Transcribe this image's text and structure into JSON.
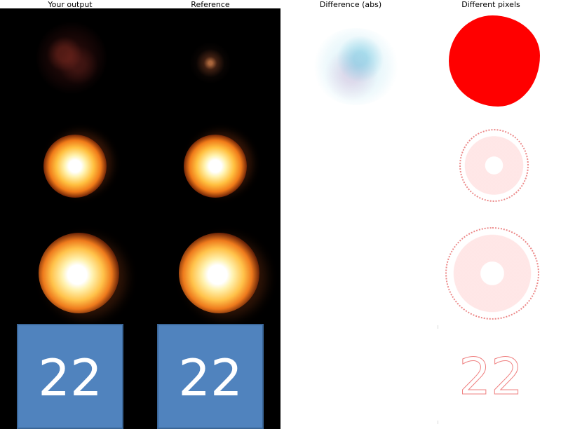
{
  "headers": {
    "output": "Your output",
    "reference": "Reference",
    "difference": "Difference (abs)",
    "different_pixels": "Different pixels"
  },
  "tiles": {
    "output_number": "22",
    "reference_number": "22",
    "diff_pixels_number": "22"
  },
  "colors": {
    "tile": "#5083be",
    "mask": "#ff0000",
    "background_dark": "#000000"
  }
}
